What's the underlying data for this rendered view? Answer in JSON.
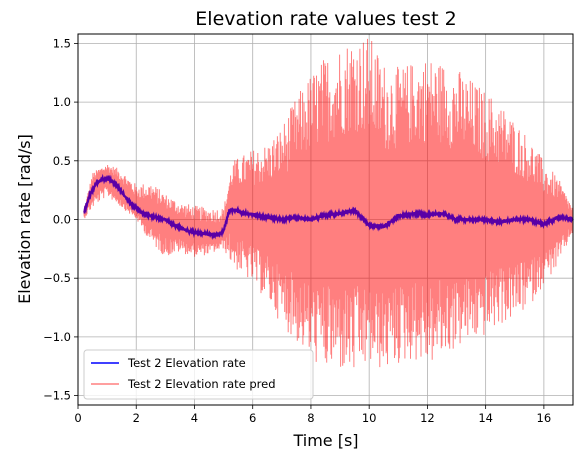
{
  "chart_data": {
    "type": "line",
    "title": "Elevation rate values test 2",
    "xlabel": "Time [s]",
    "ylabel": "Elevation rate [rad/s]",
    "xlim": [
      0,
      17
    ],
    "ylim": [
      -1.58,
      1.58
    ],
    "x_ticks": [
      0,
      2,
      4,
      6,
      8,
      10,
      12,
      14,
      16
    ],
    "y_ticks": [
      -1.5,
      -1.0,
      -0.5,
      0.0,
      0.5,
      1.0,
      1.5
    ],
    "x_tick_labels": [
      "0",
      "2",
      "4",
      "6",
      "8",
      "10",
      "12",
      "14",
      "16"
    ],
    "y_tick_labels": [
      "−1.5",
      "−1.0",
      "−0.5",
      "0.0",
      "0.5",
      "1.0",
      "1.5"
    ],
    "grid": true,
    "legend_position": "lower left",
    "colors": {
      "measured": "#0000ff",
      "predicted": "#ff0000",
      "predicted_alpha": 0.5,
      "grid": "#b0b0b0"
    },
    "series": [
      {
        "name": "Test 2 Elevation rate",
        "x": [
          0.2,
          0.4,
          0.6,
          0.8,
          1.0,
          1.2,
          1.4,
          1.6,
          1.8,
          2.0,
          2.2,
          2.4,
          2.6,
          2.8,
          3.0,
          3.2,
          3.4,
          3.6,
          3.8,
          4.0,
          4.2,
          4.4,
          4.6,
          4.8,
          5.0,
          5.2,
          5.4,
          5.6,
          5.8,
          6.0,
          6.5,
          7.0,
          7.5,
          8.0,
          8.5,
          9.0,
          9.5,
          10.0,
          10.5,
          11.0,
          11.5,
          12.0,
          12.5,
          13.0,
          13.5,
          14.0,
          14.5,
          15.0,
          15.5,
          16.0,
          16.5,
          17.0
        ],
        "values": [
          0.05,
          0.2,
          0.3,
          0.34,
          0.35,
          0.32,
          0.27,
          0.2,
          0.14,
          0.09,
          0.06,
          0.04,
          0.02,
          0.01,
          0.0,
          -0.03,
          -0.06,
          -0.08,
          -0.1,
          -0.11,
          -0.12,
          -0.12,
          -0.13,
          -0.13,
          -0.1,
          0.08,
          0.08,
          0.06,
          0.05,
          0.04,
          0.02,
          0.0,
          0.02,
          0.0,
          0.04,
          0.05,
          0.08,
          -0.05,
          -0.06,
          0.03,
          0.05,
          0.04,
          0.05,
          0.0,
          0.0,
          0.0,
          -0.02,
          0.0,
          0.0,
          -0.04,
          0.02,
          0.0
        ]
      },
      {
        "name": "Test 2 Elevation rate pred",
        "x": [
          0.2,
          0.5,
          1.0,
          1.5,
          2.0,
          2.5,
          3.0,
          3.5,
          4.0,
          4.5,
          5.0,
          5.3,
          6.0,
          6.5,
          7.0,
          7.5,
          8.0,
          8.5,
          9.0,
          9.5,
          10.0,
          10.5,
          11.0,
          11.5,
          12.0,
          12.5,
          13.0,
          13.5,
          14.0,
          14.5,
          15.0,
          15.5,
          16.0,
          16.5,
          17.0
        ],
        "envelope_upper": [
          0.08,
          0.4,
          0.48,
          0.42,
          0.3,
          0.32,
          0.22,
          0.15,
          0.12,
          0.1,
          0.1,
          0.5,
          0.6,
          0.65,
          0.8,
          1.05,
          1.25,
          1.4,
          1.5,
          1.58,
          1.58,
          1.35,
          1.3,
          1.35,
          1.4,
          1.35,
          1.3,
          1.2,
          1.1,
          1.0,
          0.85,
          0.7,
          0.5,
          0.35,
          0.1
        ],
        "envelope_lower": [
          0.0,
          0.1,
          0.2,
          0.1,
          0.0,
          -0.2,
          -0.32,
          -0.28,
          -0.32,
          -0.3,
          -0.25,
          -0.4,
          -0.55,
          -0.7,
          -0.9,
          -1.05,
          -1.2,
          -1.3,
          -1.3,
          -1.35,
          -1.25,
          -1.3,
          -1.25,
          -1.2,
          -1.25,
          -1.2,
          -1.1,
          -1.05,
          -1.0,
          -0.9,
          -0.85,
          -0.75,
          -0.55,
          -0.4,
          -0.1
        ]
      }
    ]
  }
}
